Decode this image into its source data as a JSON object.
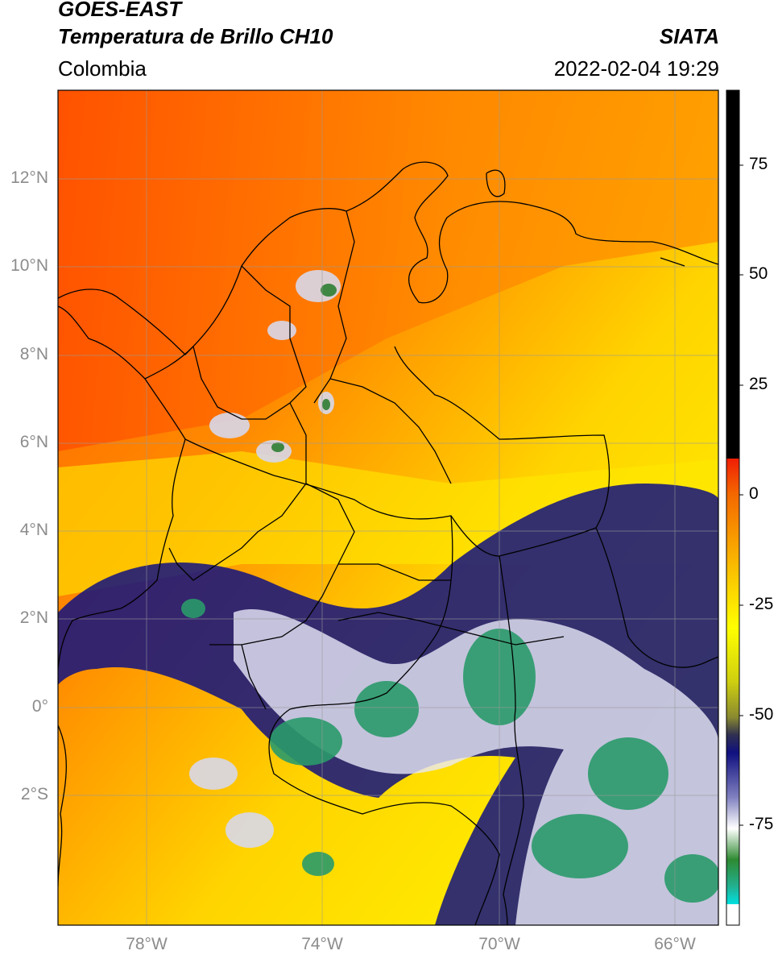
{
  "header": {
    "satellite": "GOES-EAST",
    "product": "Temperatura de Brillo CH10",
    "organization": "SIATA",
    "region": "Colombia",
    "datetime": "2022-02-04 19:29"
  },
  "map": {
    "lat_ticks": [
      "12°N",
      "10°N",
      "8°N",
      "6°N",
      "4°N",
      "2°N",
      "0°",
      "2°S"
    ],
    "lon_ticks": [
      "78°W",
      "74°W",
      "70°W",
      "66°W"
    ],
    "lat_range": [
      -4.8,
      14.0
    ],
    "lon_range": [
      -80.0,
      -65.0
    ]
  },
  "colorbar": {
    "ticks": [
      "75",
      "50",
      "25",
      "0",
      "-25",
      "-50",
      "-75"
    ],
    "range": [
      -100,
      90
    ],
    "colors": {
      "black_above": "#000000",
      "red": "#e8230a",
      "orange": "#f7a000",
      "yellow": "#ffff00",
      "olive": "#b4b41e",
      "navy": "#101080",
      "white": "#ffffff",
      "green": "#2e7d32",
      "cyan": "#00d8d8"
    }
  }
}
